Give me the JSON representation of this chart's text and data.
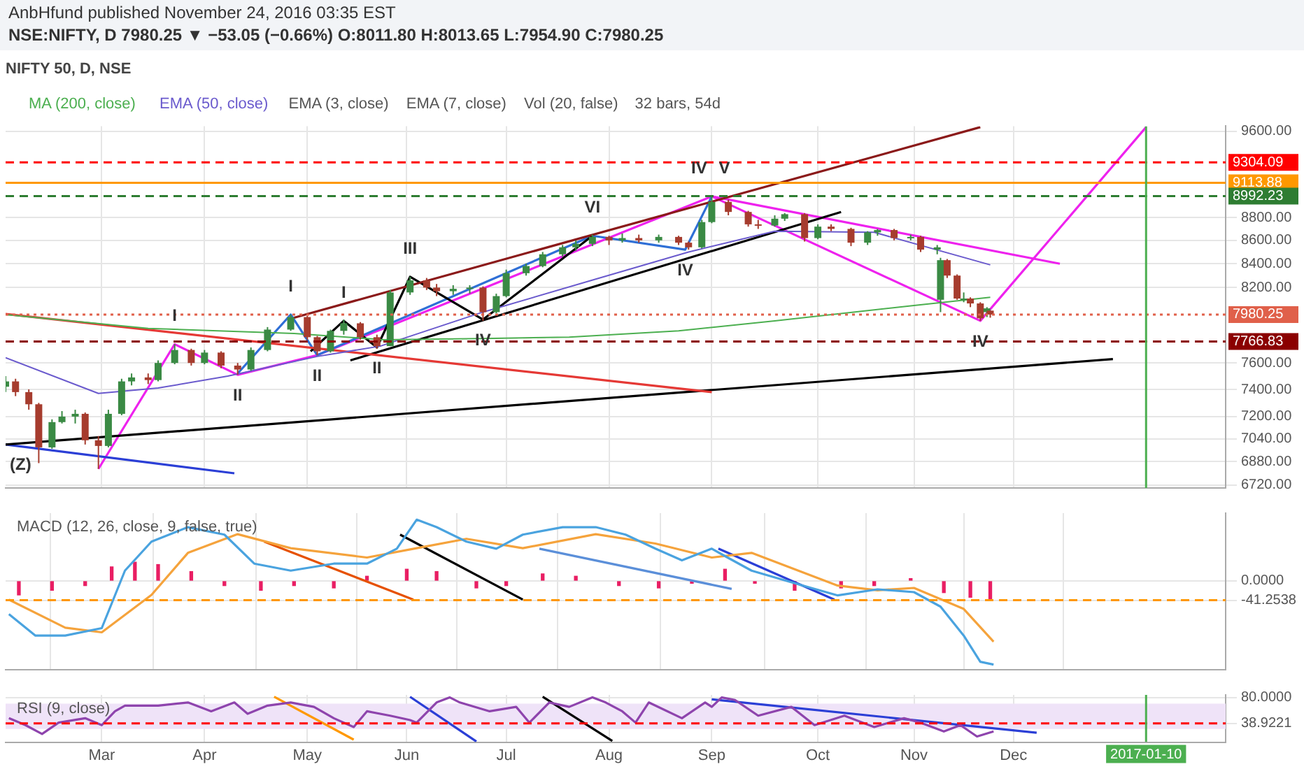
{
  "chart_data": [
    {
      "type": "candlestick",
      "title": "AnbHfund published November 24, 2016 03:35 EST",
      "subtitle": "NSE:NIFTY, D 7980.25 ▼ −53.05 (−0.66%) O:8011.80 H:8013.65 L:7954.90 C:7980.25",
      "legend_title": "NIFTY 50, D, NSE",
      "legend": "top left",
      "grid": true,
      "log": true,
      "tick_labels": "y",
      "xlim": [
        "2016-02-01",
        "2017-02-03"
      ],
      "xticks": [
        {
          "value": "2016-03-01",
          "label": null
        },
        {
          "value": "2016-04-01",
          "label": null
        },
        {
          "value": "2016-05-02",
          "label": null
        },
        {
          "value": "2016-06-01",
          "label": null
        },
        {
          "value": "2016-07-01",
          "label": null
        },
        {
          "value": "2016-08-01",
          "label": null
        },
        {
          "value": "2016-09-01",
          "label": null
        },
        {
          "value": "2016-10-03",
          "label": null
        },
        {
          "value": "2016-11-01",
          "label": null
        },
        {
          "value": "2016-12-01",
          "label": null
        }
      ],
      "ylim": [
        6700,
        9650
      ],
      "yticks": [
        {
          "value": 9600,
          "label": "9600.00"
        },
        {
          "value": 8800,
          "label": "8800.00"
        },
        {
          "value": 8600,
          "label": "8600.00"
        },
        {
          "value": 8400,
          "label": "8400.00"
        },
        {
          "value": 8200,
          "label": "8200.00"
        },
        {
          "value": 7600,
          "label": "7600.00"
        },
        {
          "value": 7400,
          "label": "7400.00"
        },
        {
          "value": 7200,
          "label": "7200.00"
        },
        {
          "value": 7040,
          "label": "7040.00"
        },
        {
          "value": 6880,
          "label": "6880.00"
        },
        {
          "value": 6720,
          "label": "6720.00"
        }
      ],
      "x": [
        "2016-02-01",
        "2016-02-04",
        "2016-02-08",
        "2016-02-11",
        "2016-02-15",
        "2016-02-18",
        "2016-02-22",
        "2016-02-25",
        "2016-02-29",
        "2016-03-03",
        "2016-03-07",
        "2016-03-10",
        "2016-03-15",
        "2016-03-18",
        "2016-03-23",
        "2016-03-28",
        "2016-04-01",
        "2016-04-06",
        "2016-04-11",
        "2016-04-15",
        "2016-04-20",
        "2016-04-27",
        "2016-05-02",
        "2016-05-05",
        "2016-05-09",
        "2016-05-13",
        "2016-05-18",
        "2016-05-23",
        "2016-05-27",
        "2016-06-02",
        "2016-06-07",
        "2016-06-10",
        "2016-06-15",
        "2016-06-20",
        "2016-06-24",
        "2016-06-28",
        "2016-07-01",
        "2016-07-07",
        "2016-07-12",
        "2016-07-18",
        "2016-07-22",
        "2016-07-27",
        "2016-08-01",
        "2016-08-05",
        "2016-08-10",
        "2016-08-16",
        "2016-08-22",
        "2016-08-25",
        "2016-08-29",
        "2016-09-01",
        "2016-09-06",
        "2016-09-12",
        "2016-09-15",
        "2016-09-20",
        "2016-09-23",
        "2016-09-29",
        "2016-10-03",
        "2016-10-07",
        "2016-10-13",
        "2016-10-18",
        "2016-10-21",
        "2016-10-26",
        "2016-10-31",
        "2016-11-03",
        "2016-11-08",
        "2016-11-09",
        "2016-11-11",
        "2016-11-14",
        "2016-11-16",
        "2016-11-18",
        "2016-11-21",
        "2016-11-23",
        "2016-11-24"
      ],
      "ohlc": [
        [
          7420,
          7500,
          7380,
          7460
        ],
        [
          7460,
          7480,
          7350,
          7380
        ],
        [
          7380,
          7400,
          7250,
          7290
        ],
        [
          7290,
          7300,
          6870,
          6980
        ],
        [
          6980,
          7180,
          6970,
          7160
        ],
        [
          7160,
          7240,
          7150,
          7200
        ],
        [
          7200,
          7250,
          7150,
          7220
        ],
        [
          7220,
          7230,
          7000,
          7030
        ],
        [
          7030,
          7060,
          6830,
          6990
        ],
        [
          6990,
          7250,
          6980,
          7220
        ],
        [
          7220,
          7480,
          7210,
          7460
        ],
        [
          7460,
          7520,
          7430,
          7490
        ],
        [
          7490,
          7520,
          7440,
          7470
        ],
        [
          7470,
          7620,
          7460,
          7600
        ],
        [
          7600,
          7745,
          7590,
          7700
        ],
        [
          7700,
          7710,
          7580,
          7600
        ],
        [
          7600,
          7700,
          7590,
          7680
        ],
        [
          7680,
          7690,
          7560,
          7580
        ],
        [
          7580,
          7600,
          7510,
          7550
        ],
        [
          7550,
          7720,
          7540,
          7700
        ],
        [
          7700,
          7880,
          7690,
          7860
        ],
        [
          7860,
          7980,
          7850,
          7960
        ],
        [
          7960,
          7970,
          7780,
          7800
        ],
        [
          7800,
          7810,
          7660,
          7690
        ],
        [
          7690,
          7860,
          7680,
          7850
        ],
        [
          7850,
          7940,
          7820,
          7910
        ],
        [
          7910,
          7920,
          7780,
          7800
        ],
        [
          7800,
          7820,
          7710,
          7730
        ],
        [
          7730,
          8180,
          7730,
          8160
        ],
        [
          8160,
          8290,
          8140,
          8260
        ],
        [
          8260,
          8280,
          8180,
          8200
        ],
        [
          8200,
          8230,
          8130,
          8170
        ],
        [
          8170,
          8220,
          8140,
          8190
        ],
        [
          8190,
          8220,
          8150,
          8200
        ],
        [
          8200,
          8210,
          7930,
          8000
        ],
        [
          8000,
          8150,
          7990,
          8130
        ],
        [
          8130,
          8350,
          8120,
          8320
        ],
        [
          8320,
          8400,
          8300,
          8380
        ],
        [
          8380,
          8500,
          8370,
          8480
        ],
        [
          8480,
          8560,
          8460,
          8540
        ],
        [
          8540,
          8600,
          8510,
          8570
        ],
        [
          8570,
          8650,
          8550,
          8630
        ],
        [
          8630,
          8640,
          8560,
          8600
        ],
        [
          8600,
          8660,
          8580,
          8620
        ],
        [
          8620,
          8650,
          8580,
          8600
        ],
        [
          8600,
          8650,
          8580,
          8630
        ],
        [
          8630,
          8640,
          8560,
          8580
        ],
        [
          8580,
          8590,
          8520,
          8540
        ],
        [
          8540,
          8780,
          8530,
          8760
        ],
        [
          8760,
          8990,
          8750,
          8940
        ],
        [
          8940,
          8960,
          8820,
          8850
        ],
        [
          8850,
          8860,
          8720,
          8740
        ],
        [
          8740,
          8780,
          8700,
          8730
        ],
        [
          8730,
          8820,
          8720,
          8790
        ],
        [
          8790,
          8840,
          8770,
          8830
        ],
        [
          8830,
          8840,
          8590,
          8620
        ],
        [
          8620,
          8740,
          8610,
          8720
        ],
        [
          8720,
          8740,
          8680,
          8700
        ],
        [
          8700,
          8710,
          8550,
          8580
        ],
        [
          8580,
          8680,
          8560,
          8670
        ],
        [
          8670,
          8700,
          8640,
          8690
        ],
        [
          8690,
          8700,
          8600,
          8620
        ],
        [
          8620,
          8650,
          8600,
          8630
        ],
        [
          8630,
          8640,
          8500,
          8520
        ],
        [
          8520,
          8560,
          8480,
          8540
        ],
        [
          8100,
          8450,
          8000,
          8430
        ],
        [
          8430,
          8440,
          8280,
          8300
        ],
        [
          8300,
          8310,
          8100,
          8110
        ],
        [
          8110,
          8160,
          8080,
          8110
        ],
        [
          8110,
          8120,
          8040,
          8070
        ],
        [
          8070,
          8080,
          7930,
          7950
        ],
        [
          8000,
          8040,
          7960,
          8030
        ],
        [
          8011.8,
          8013.65,
          7954.9,
          7980.25
        ]
      ],
      "series": [
        {
          "type": "line",
          "name": "MA (200, close)",
          "color": "#4caf50",
          "x": [
            "2016-02-01",
            "2016-03-15",
            "2016-04-28",
            "2016-05-25",
            "2016-06-24",
            "2016-07-20",
            "2016-08-22",
            "2016-09-20",
            "2016-10-31",
            "2016-11-24"
          ],
          "values": [
            7980,
            7870,
            7830,
            7780,
            7790,
            7800,
            7850,
            7930,
            8050,
            8120
          ]
        },
        {
          "type": "line",
          "name": "EMA (50, close)",
          "color": "#6a5acd",
          "x": [
            "2016-02-01",
            "2016-02-29",
            "2016-03-18",
            "2016-04-08",
            "2016-05-05",
            "2016-05-24",
            "2016-06-24",
            "2016-07-28",
            "2016-08-25",
            "2016-09-20",
            "2016-10-20",
            "2016-11-24"
          ],
          "values": [
            7640,
            7370,
            7410,
            7500,
            7650,
            7730,
            8000,
            8270,
            8500,
            8680,
            8670,
            8390
          ]
        },
        {
          "type": "line",
          "color": "#8b1a1a",
          "x": [
            "2016-04-28",
            "2016-11-21"
          ],
          "values": [
            7955,
            9640
          ]
        },
        {
          "type": "line",
          "color": "#e53935",
          "x": [
            "2016-02-01",
            "2016-09-01"
          ],
          "values": [
            7985,
            7380
          ]
        },
        {
          "type": "line",
          "color": "#000000",
          "x": [
            "2016-02-01",
            "2016-12-31"
          ],
          "values": [
            7000,
            7630
          ]
        },
        {
          "type": "line",
          "color": "#2b3fd6",
          "x": [
            "2016-02-01",
            "2016-04-10"
          ],
          "values": [
            7000,
            6800
          ]
        },
        {
          "type": "line",
          "color": "#000000",
          "x": [
            "2016-05-15",
            "2016-10-10"
          ],
          "values": [
            7620,
            8850
          ]
        },
        {
          "type": "line",
          "color": "#ee22ee",
          "x": [
            "2016-09-01",
            "2016-12-15"
          ],
          "values": [
            8990,
            8400
          ]
        },
        {
          "type": "line",
          "color": "#000000",
          "x": [
            "2016-05-03",
            "2016-05-13",
            "2016-05-23",
            "2016-06-02",
            "2016-06-24",
            "2016-07-27"
          ],
          "values": [
            7690,
            7930,
            7720,
            8290,
            7940,
            8640
          ]
        },
        {
          "type": "line",
          "color": "#2f6fd6",
          "x": [
            "2016-04-11",
            "2016-04-27",
            "2016-05-05",
            "2016-07-27",
            "2016-08-24",
            "2016-09-01"
          ],
          "values": [
            7520,
            7980,
            7660,
            8640,
            8520,
            8990
          ]
        },
        {
          "type": "line",
          "color": "#ee22ee",
          "x": [
            "2016-02-29",
            "2016-03-23",
            "2016-04-11",
            "2016-05-05",
            "2016-09-01",
            "2016-11-21",
            "2017-01-10"
          ],
          "values": [
            6830,
            7745,
            7510,
            7660,
            8990,
            7930,
            9640
          ]
        }
      ],
      "ref_lines": [
        {
          "axis": "y",
          "value": 9304.09,
          "label": "9304.09",
          "color": "#ff0000",
          "line_style": "dashed"
        },
        {
          "axis": "y",
          "value": 9113.88,
          "label": "9113.88",
          "color": "#ff9800",
          "line_style": "solid"
        },
        {
          "axis": "y",
          "value": 8992.23,
          "label": "8992.23",
          "color": "#2e7d32",
          "line_style": "dashed"
        },
        {
          "axis": "y",
          "value": 7980.25,
          "label": "7980.25",
          "color": "#e0604a",
          "line_style": "dotted"
        },
        {
          "axis": "y",
          "value": 7766.83,
          "label": "7766.83",
          "color": "#8b0000",
          "line_style": "dashed"
        },
        {
          "axis": "x",
          "value": "2017-01-10",
          "color": "#4caf50",
          "line_style": "solid"
        }
      ],
      "annotations": [
        "EMA (3, close)",
        "EMA (7, close)",
        "Vol (20, false)",
        "32 bars, 54d",
        {
          "text": "I",
          "x": "2016-03-23",
          "y": 7745
        },
        {
          "text": "II",
          "x": "2016-04-11",
          "y": 7510
        },
        {
          "text": "I",
          "x": "2016-04-27",
          "y": 7980
        },
        {
          "text": "II",
          "x": "2016-05-05",
          "y": 7660
        },
        {
          "text": "I",
          "x": "2016-05-13",
          "y": 7930
        },
        {
          "text": "II",
          "x": "2016-05-23",
          "y": 7720
        },
        {
          "text": "III",
          "x": "2016-06-02",
          "y": 8290
        },
        {
          "text": "IV",
          "x": "2016-06-24",
          "y": 7940
        },
        {
          "text": "VI",
          "x": "2016-07-27",
          "y": 8640
        },
        {
          "text": "IV",
          "x": "2016-08-24",
          "y": 8520
        },
        {
          "text": "IV",
          "x": "2016-09-01",
          "y": 8990
        },
        {
          "text": "V",
          "x": "2016-09-01",
          "y": 8990
        },
        {
          "text": "IV",
          "x": "2016-11-21",
          "y": 7930
        },
        {
          "text": "(Z)",
          "x": "2016-02-01",
          "y": 7000
        }
      ]
    },
    {
      "type": "line",
      "title": "MACD (12, 26, close, 9, false, true)",
      "grid": true,
      "tick_labels": "y",
      "ylim": [
        -190,
        145
      ],
      "yticks": [
        -41.2538,
        {
          "value": 0,
          "label": "0.0000"
        }
      ],
      "xlim": [
        "2016-02-01",
        "2017-02-03"
      ],
      "xticks": [
        {
          "value": "2016-03-01",
          "label": null
        },
        {
          "value": "2016-04-01",
          "label": null
        },
        {
          "value": "2016-05-02",
          "label": null
        },
        {
          "value": "2016-06-01",
          "label": null
        },
        {
          "value": "2016-07-01",
          "label": null
        },
        {
          "value": "2016-08-01",
          "label": null
        },
        {
          "value": "2016-09-01",
          "label": null
        },
        {
          "value": "2016-10-03",
          "label": null
        },
        {
          "value": "2016-11-01",
          "label": null
        },
        {
          "value": "2016-12-01",
          "label": null
        }
      ],
      "series": [
        {
          "type": "bar",
          "color": "#e91e63",
          "x": [
            "2016-02-05",
            "2016-02-15",
            "2016-02-25",
            "2016-03-04",
            "2016-03-11",
            "2016-03-18",
            "2016-03-28",
            "2016-04-07",
            "2016-04-18",
            "2016-04-28",
            "2016-05-10",
            "2016-05-20",
            "2016-06-01",
            "2016-06-10",
            "2016-06-22",
            "2016-07-01",
            "2016-07-12",
            "2016-07-22",
            "2016-08-04",
            "2016-08-16",
            "2016-08-26",
            "2016-09-05",
            "2016-09-14",
            "2016-09-26",
            "2016-10-10",
            "2016-10-20",
            "2016-10-31",
            "2016-11-10",
            "2016-11-18",
            "2016-11-24"
          ],
          "values": [
            -30,
            -20,
            -10,
            30,
            40,
            35,
            20,
            -10,
            -20,
            -10,
            -15,
            10,
            25,
            20,
            -15,
            -10,
            15,
            10,
            -10,
            -15,
            -5,
            25,
            -5,
            -20,
            -15,
            -10,
            5,
            -25,
            -35,
            -40
          ]
        },
        {
          "type": "line",
          "color": "#4aa3df",
          "x": [
            "2016-02-02",
            "2016-02-10",
            "2016-02-19",
            "2016-03-01",
            "2016-03-08",
            "2016-03-16",
            "2016-03-27",
            "2016-04-07",
            "2016-04-16",
            "2016-04-27",
            "2016-05-10",
            "2016-05-20",
            "2016-05-29",
            "2016-06-04",
            "2016-06-10",
            "2016-06-19",
            "2016-06-28",
            "2016-07-06",
            "2016-07-18",
            "2016-07-28",
            "2016-08-06",
            "2016-08-15",
            "2016-08-23",
            "2016-09-01",
            "2016-09-05",
            "2016-09-13",
            "2016-09-28",
            "2016-10-09",
            "2016-10-21",
            "2016-11-01",
            "2016-11-09",
            "2016-11-16",
            "2016-11-21",
            "2016-11-25"
          ],
          "values": [
            -71,
            -117,
            -117,
            -101,
            22,
            84,
            115,
            99,
            37,
            22,
            37,
            37,
            69,
            131,
            115,
            84,
            69,
            99,
            115,
            115,
            99,
            69,
            44,
            69,
            53,
            22,
            -9,
            -31,
            -18,
            -24,
            -55,
            -117,
            -173,
            -179
          ]
        },
        {
          "type": "line",
          "color": "#f5a33c",
          "x": [
            "2016-02-02",
            "2016-02-19",
            "2016-03-01",
            "2016-03-16",
            "2016-03-27",
            "2016-04-11",
            "2016-04-27",
            "2016-05-20",
            "2016-06-04",
            "2016-06-19",
            "2016-07-06",
            "2016-07-28",
            "2016-08-15",
            "2016-09-01",
            "2016-09-13",
            "2016-10-09",
            "2016-10-21",
            "2016-11-01",
            "2016-11-16",
            "2016-11-25"
          ],
          "values": [
            -40,
            -100,
            -110,
            -30,
            60,
            100,
            70,
            50,
            70,
            90,
            70,
            100,
            80,
            50,
            60,
            -10,
            -20,
            -15,
            -60,
            -130
          ]
        },
        {
          "type": "line",
          "color": "#e65100",
          "x": [
            "2016-04-19",
            "2016-06-03"
          ],
          "values": [
            84,
            -40
          ]
        },
        {
          "type": "line",
          "color": "#000000",
          "x": [
            "2016-05-30",
            "2016-07-06"
          ],
          "values": [
            99,
            -40
          ]
        },
        {
          "type": "line",
          "color": "#5b8fd9",
          "x": [
            "2016-07-11",
            "2016-09-07"
          ],
          "values": [
            69,
            -17
          ]
        },
        {
          "type": "line",
          "color": "#2b3fd6",
          "x": [
            "2016-09-03",
            "2016-10-08"
          ],
          "values": [
            69,
            -40
          ]
        }
      ],
      "ref_lines": [
        {
          "axis": "y",
          "value": -41.2538,
          "color": "#ff9800",
          "line_style": "dashed"
        }
      ]
    },
    {
      "type": "line",
      "title": "RSI (9, close)",
      "grid": true,
      "xlim": [
        "2016-02-01",
        "2017-02-03"
      ],
      "xticks": [
        {
          "value": "2016-03-01",
          "label": "Mar"
        },
        {
          "value": "2016-04-01",
          "label": "Apr"
        },
        {
          "value": "2016-05-02",
          "label": "May"
        },
        {
          "value": "2016-06-01",
          "label": "Jun"
        },
        {
          "value": "2016-07-01",
          "label": "Jul"
        },
        {
          "value": "2016-08-01",
          "label": "Aug"
        },
        {
          "value": "2016-09-01",
          "label": "Sep"
        },
        {
          "value": "2016-10-03",
          "label": "Oct"
        },
        {
          "value": "2016-11-01",
          "label": "Nov"
        },
        {
          "value": "2016-12-01",
          "label": "Dec"
        }
      ],
      "ylim": [
        9,
        84
      ],
      "yticks": [
        {
          "value": 80,
          "label": "80.0000"
        },
        38.9221
      ],
      "series": [
        {
          "type": "line",
          "color": "#8e44ad",
          "x": [
            "2016-02-02",
            "2016-02-07",
            "2016-02-12",
            "2016-02-17",
            "2016-02-25",
            "2016-03-01",
            "2016-03-05",
            "2016-03-08",
            "2016-03-18",
            "2016-03-27",
            "2016-04-03",
            "2016-04-10",
            "2016-04-14",
            "2016-04-20",
            "2016-04-27",
            "2016-05-04",
            "2016-05-10",
            "2016-05-16",
            "2016-05-20",
            "2016-05-27",
            "2016-06-02",
            "2016-06-04",
            "2016-06-10",
            "2016-06-14",
            "2016-06-17",
            "2016-06-26",
            "2016-07-04",
            "2016-07-08",
            "2016-07-14",
            "2016-07-20",
            "2016-07-27",
            "2016-07-31",
            "2016-08-05",
            "2016-08-09",
            "2016-08-13",
            "2016-08-23",
            "2016-08-30",
            "2016-09-01",
            "2016-09-04",
            "2016-09-08",
            "2016-09-15",
            "2016-09-25",
            "2016-10-02",
            "2016-10-11",
            "2016-10-20",
            "2016-10-29",
            "2016-11-03",
            "2016-11-10",
            "2016-11-15",
            "2016-11-20",
            "2016-11-25"
          ],
          "values": [
            47,
            36,
            22,
            40,
            47,
            36,
            58,
            67,
            67,
            72,
            58,
            72,
            54,
            67,
            72,
            65,
            47,
            33,
            58,
            51,
            44,
            40,
            72,
            80,
            72,
            58,
            65,
            40,
            72,
            65,
            80,
            72,
            58,
            40,
            72,
            47,
            72,
            65,
            80,
            76,
            51,
            65,
            36,
            51,
            33,
            47,
            40,
            26,
            36,
            18,
            26
          ]
        },
        {
          "type": "line",
          "color": "#ff9800",
          "x": [
            "2016-04-22",
            "2016-05-16"
          ],
          "values": [
            81,
            13
          ]
        },
        {
          "type": "line",
          "color": "#2b3fd6",
          "x": [
            "2016-06-02",
            "2016-06-22"
          ],
          "values": [
            81,
            10
          ]
        },
        {
          "type": "line",
          "color": "#000000",
          "x": [
            "2016-07-12",
            "2016-08-02"
          ],
          "values": [
            81,
            11
          ]
        },
        {
          "type": "line",
          "color": "#2b3fd6",
          "x": [
            "2016-09-01",
            "2016-12-08"
          ],
          "values": [
            77,
            24
          ]
        }
      ],
      "bands": [
        {
          "axis": "y",
          "from": 30,
          "to": 70,
          "color": "#efe3f8"
        }
      ],
      "ref_lines": [
        {
          "axis": "y",
          "value": 38.9221,
          "color": "#ff0000",
          "line_style": "dashed"
        },
        {
          "axis": "x",
          "value": "2017-01-10",
          "label": "2017-01-10",
          "color": "#4caf50",
          "line_style": "solid"
        }
      ]
    }
  ]
}
